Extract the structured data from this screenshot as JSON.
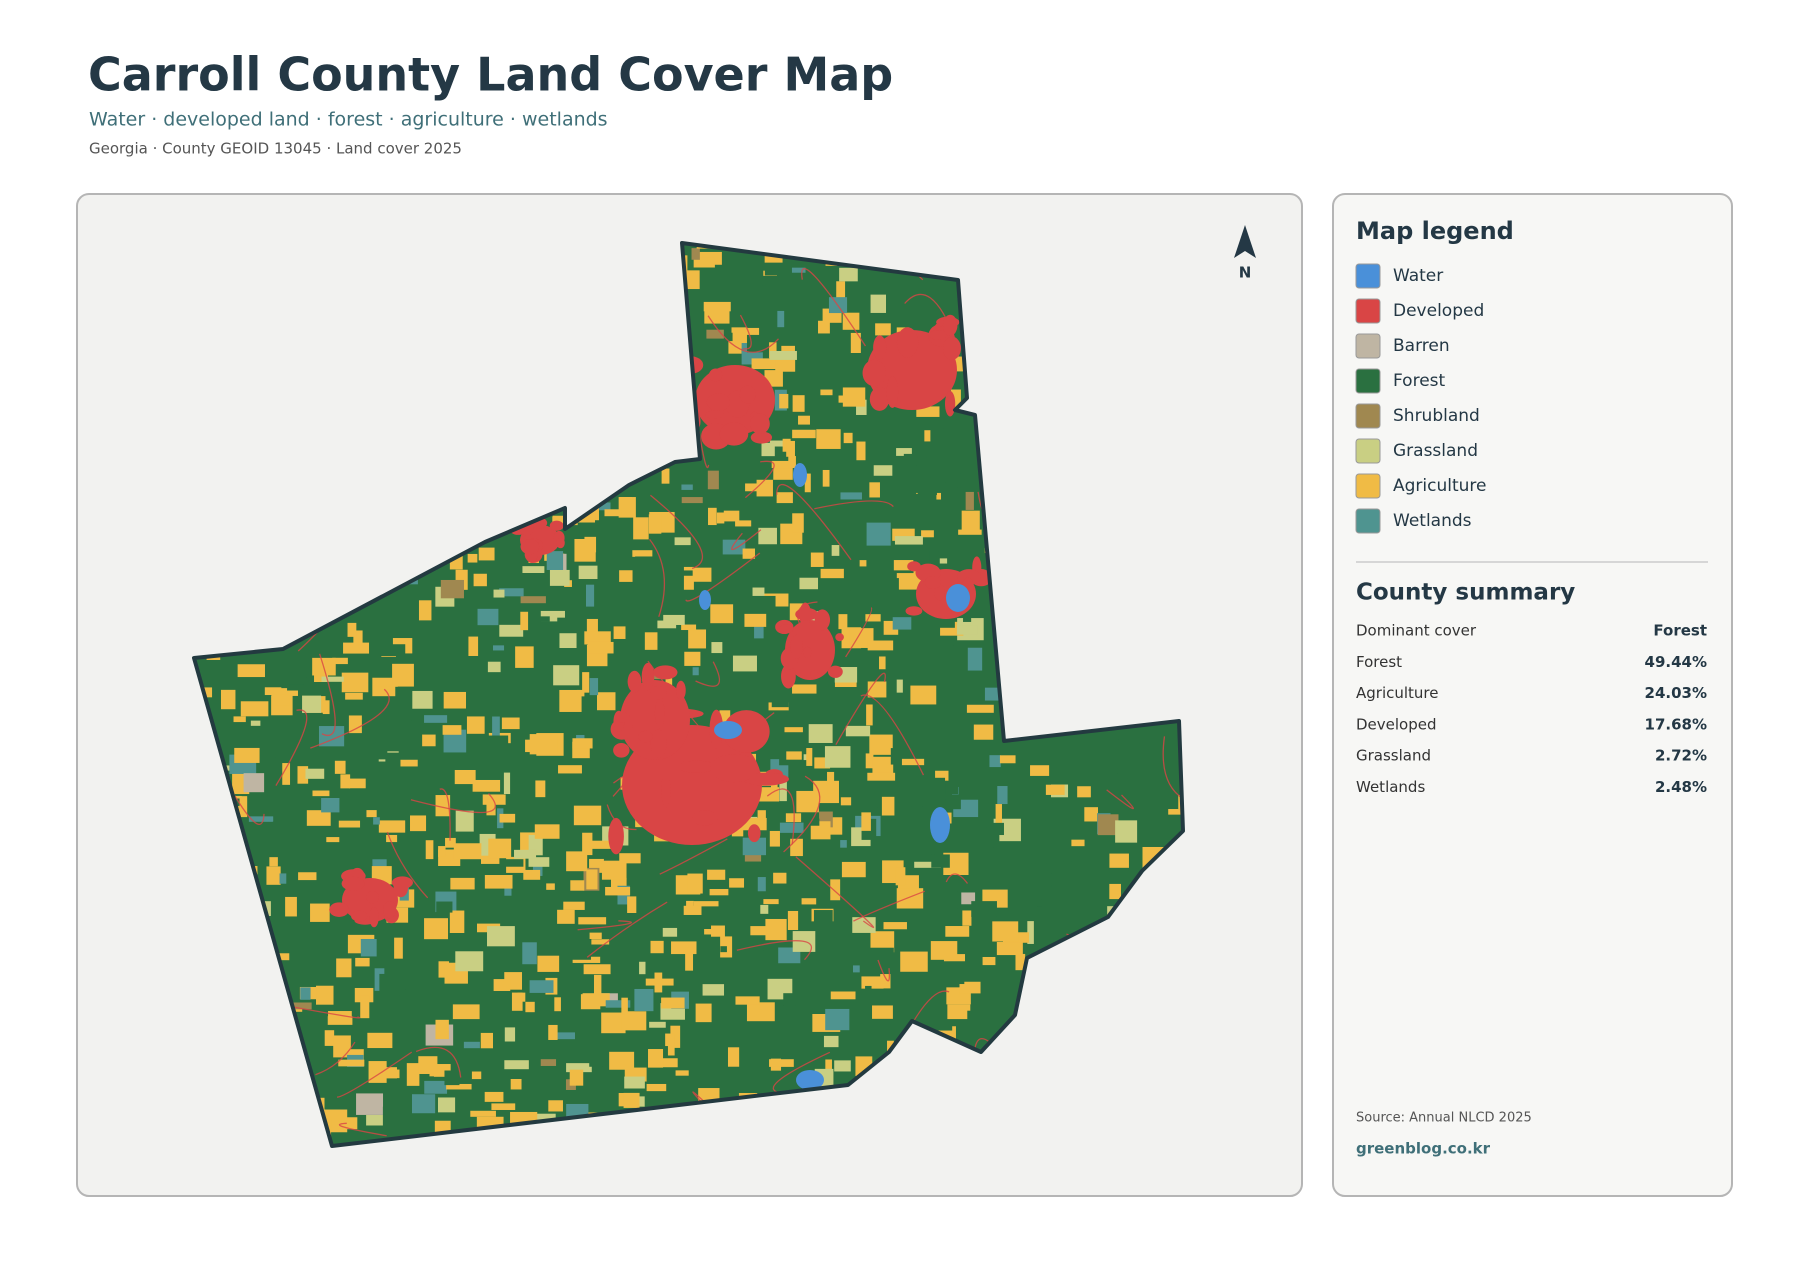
{
  "header": {
    "title": "Carroll County Land Cover Map",
    "subtitle": "Water · developed land · forest · agriculture · wetlands",
    "meta": "Georgia · County GEOID 13045 · Land cover 2025"
  },
  "map": {
    "north_label": "N"
  },
  "legend": {
    "title": "Map legend",
    "items": [
      {
        "label": "Water",
        "color": "#4a90d9"
      },
      {
        "label": "Developed",
        "color": "#d94545"
      },
      {
        "label": "Barren",
        "color": "#bfb5a3"
      },
      {
        "label": "Forest",
        "color": "#2a7040"
      },
      {
        "label": "Shrubland",
        "color": "#a08850"
      },
      {
        "label": "Grassland",
        "color": "#c9cf83"
      },
      {
        "label": "Agriculture",
        "color": "#f0bb45"
      },
      {
        "label": "Wetlands",
        "color": "#4f9490"
      }
    ]
  },
  "summary": {
    "title": "County summary",
    "rows": [
      [
        "Dominant cover",
        "Forest"
      ],
      [
        "Forest",
        "49.44%"
      ],
      [
        "Agriculture",
        "24.03%"
      ],
      [
        "Developed",
        "17.68%"
      ],
      [
        "Grassland",
        "2.72%"
      ],
      [
        "Wetlands",
        "2.48%"
      ]
    ]
  },
  "footer": {
    "source": "Source: Annual NLCD 2025",
    "site": "greenblog.co.kr"
  }
}
